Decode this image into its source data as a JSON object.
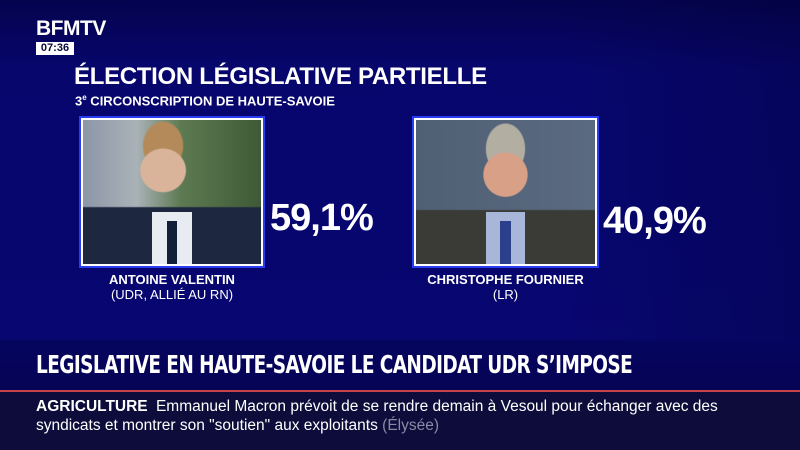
{
  "channel": {
    "logo": "BFMTV",
    "clock": "07:36"
  },
  "graphic": {
    "title": "ÉLECTION LÉGISLATIVE PARTIELLE",
    "subtitle": "3e CIRCONSCRIPTION DE HAUTE-SAVOIE",
    "candidates": [
      {
        "name": "ANTOINE VALENTIN",
        "party": "(UDR, ALLIÉ AU RN)",
        "score": "59,1%"
      },
      {
        "name": "CHRISTOPHE FOURNIER",
        "party": "(LR)",
        "score": "40,9%"
      }
    ]
  },
  "headline": "LEGISLATIVE EN HAUTE-SAVOIE LE CANDIDAT UDR S’IMPOSE",
  "ticker": {
    "tag": "AGRICULTURE",
    "text": "Emmanuel Macron prévoit de se rendre demain à Vesoul pour échanger avec des syndicats et montrer son \"soutien\" aux exploitants",
    "source": "(Élysée)"
  },
  "colors": {
    "background": "#07066f",
    "ticker_bg": "#0d0c3a",
    "accent_line": "#c8424a",
    "photo_border": "#2a3cf0"
  }
}
